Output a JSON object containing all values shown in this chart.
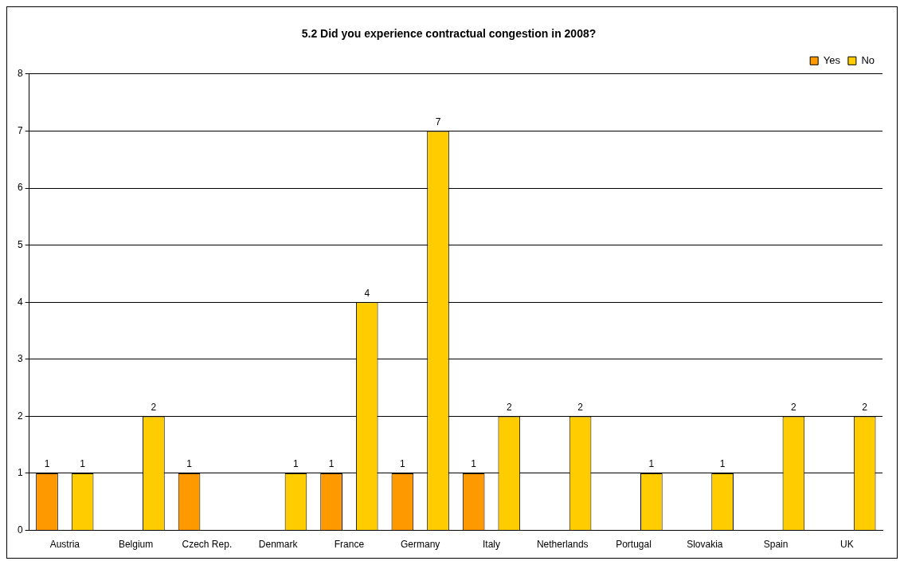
{
  "chart_data": {
    "type": "bar",
    "title": "5.2 Did you experience contractual congestion in 2008?",
    "categories": [
      "Austria",
      "Belgium",
      "Czech Rep.",
      "Denmark",
      "France",
      "Germany",
      "Italy",
      "Netherlands",
      "Portugal",
      "Slovakia",
      "Spain",
      "UK"
    ],
    "series": [
      {
        "name": "Yes",
        "color": "#ff9900",
        "values": [
          1,
          null,
          1,
          null,
          1,
          1,
          1,
          null,
          null,
          null,
          null,
          null
        ]
      },
      {
        "name": "No",
        "color": "#ffcc00",
        "values": [
          1,
          2,
          null,
          1,
          4,
          7,
          2,
          2,
          1,
          1,
          2,
          2
        ]
      }
    ],
    "ylim": [
      0,
      8
    ],
    "yticks": [
      0,
      1,
      2,
      3,
      4,
      5,
      6,
      7,
      8
    ],
    "grid": "y",
    "legend": "top right",
    "data_labels": true
  }
}
